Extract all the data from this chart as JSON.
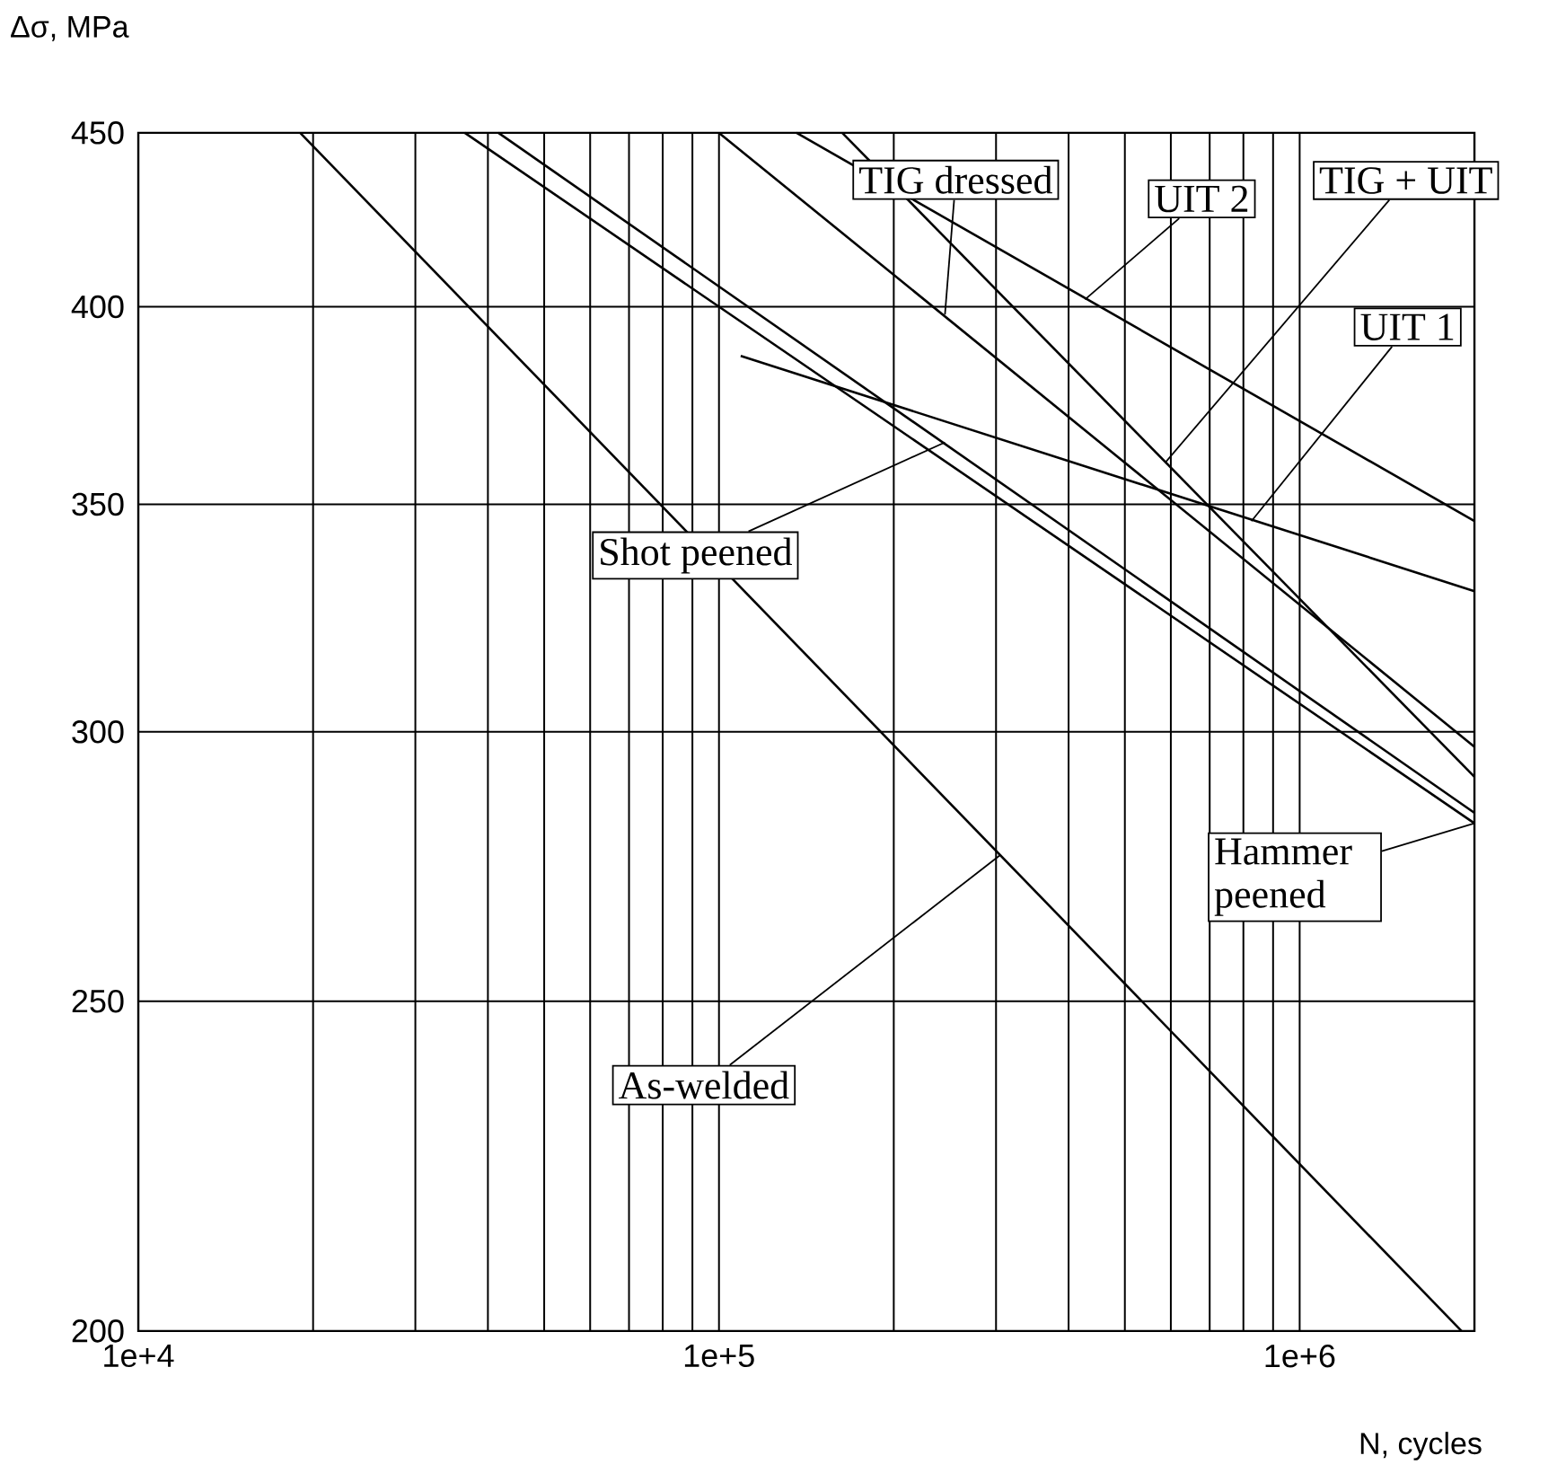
{
  "chart_data": {
    "type": "line",
    "xlabel": "N, cycles",
    "ylabel": "Δσ, MPa",
    "log": "xy",
    "grid": true,
    "marker": "none",
    "line_style": "solid",
    "xlim": [
      10000,
      2000000
    ],
    "ylim": [
      200,
      450
    ],
    "xticks": [
      {
        "value": 10000,
        "label": "1e+4"
      },
      {
        "value": 20000,
        "label": null
      },
      {
        "value": 30000,
        "label": null
      },
      {
        "value": 40000,
        "label": null
      },
      {
        "value": 50000,
        "label": null
      },
      {
        "value": 60000,
        "label": null
      },
      {
        "value": 70000,
        "label": null
      },
      {
        "value": 80000,
        "label": null
      },
      {
        "value": 90000,
        "label": null
      },
      {
        "value": 100000,
        "label": "1e+5"
      },
      {
        "value": 200000,
        "label": null
      },
      {
        "value": 300000,
        "label": null
      },
      {
        "value": 400000,
        "label": null
      },
      {
        "value": 500000,
        "label": null
      },
      {
        "value": 600000,
        "label": null
      },
      {
        "value": 700000,
        "label": null
      },
      {
        "value": 800000,
        "label": null
      },
      {
        "value": 900000,
        "label": null
      },
      {
        "value": 1000000,
        "label": "1e+6"
      }
    ],
    "yticks": [
      200,
      250,
      300,
      350,
      400,
      450
    ],
    "series": [
      {
        "color": "#000000",
        "x": [
          19000,
          1900000
        ],
        "values": [
          450,
          200
        ]
      },
      {
        "color": "#000000",
        "x": [
          41700,
          2000000
        ],
        "values": [
          450,
          284
        ]
      },
      {
        "color": "#000000",
        "x": [
          36500,
          2000000
        ],
        "values": [
          450,
          282
        ]
      },
      {
        "color": "#000000",
        "x": [
          100000,
          2000000
        ],
        "values": [
          450,
          297
        ]
      },
      {
        "color": "#000000",
        "x": [
          109000,
          2000000
        ],
        "values": [
          387,
          330
        ]
      },
      {
        "color": "#000000",
        "x": [
          136000,
          2000000
        ],
        "values": [
          450,
          346
        ]
      },
      {
        "color": "#000000",
        "x": [
          163000,
          2000000
        ],
        "values": [
          450,
          291
        ]
      }
    ],
    "annotations": [
      {
        "text": "As-welded",
        "x": 305000,
        "y": 276
      },
      {
        "text": "Shot peened",
        "x": 245000,
        "y": 365
      },
      {
        "text": "Hammer peened",
        "x": 2000000,
        "y": 282
      },
      {
        "text": "TIG dressed",
        "x": 245000,
        "y": 398
      },
      {
        "text": "UIT 1",
        "x": 826000,
        "y": 346
      },
      {
        "text": "UIT 2",
        "x": 427000,
        "y": 402
      },
      {
        "text": "TIG + UIT",
        "x": 587000,
        "y": 360
      }
    ]
  }
}
